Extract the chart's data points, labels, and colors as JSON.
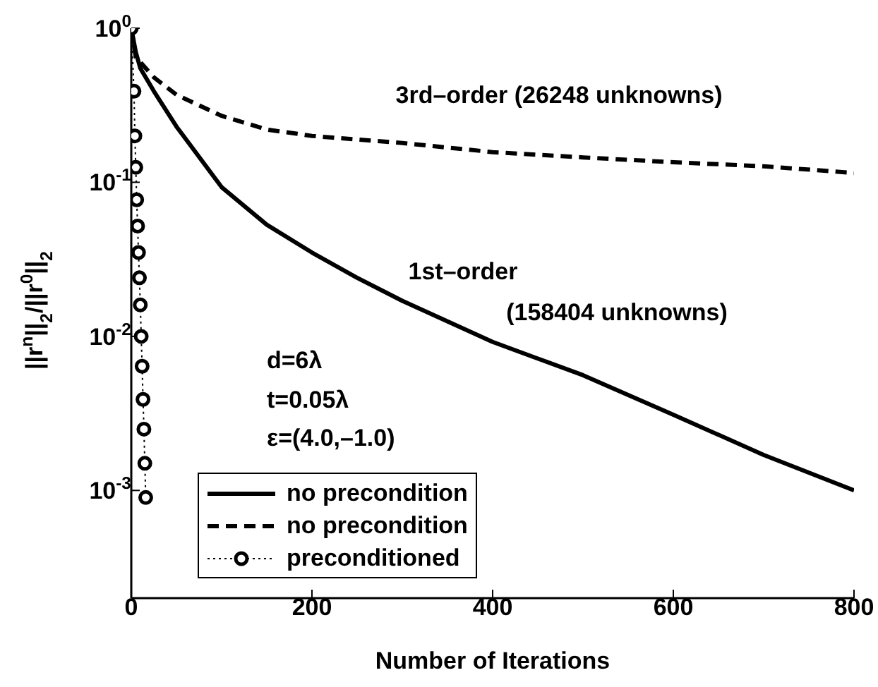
{
  "chart_data": {
    "type": "line",
    "xlabel": "Number of Iterations",
    "ylabel": "||r$^{n}$||$_{2}$/||r$^{0}$||$_{2}$",
    "log": "y",
    "xlim": [
      0,
      800
    ],
    "xticks": [
      0,
      200,
      400,
      600,
      800
    ],
    "ylim": [
      0.0002,
      1
    ],
    "yticks": [
      {
        "value": 1,
        "label": "10$^{0}$"
      },
      {
        "value": 0.1,
        "label": "10$^{-1}$"
      },
      {
        "value": 0.01,
        "label": "10$^{-2}$"
      },
      {
        "value": 0.001,
        "label": "10$^{-3}$"
      }
    ],
    "grid": false,
    "legend": "bottom left",
    "series": [
      {
        "name": "no precondition",
        "color": "#000000",
        "line_style": "solid",
        "marker": "none",
        "x": [
          0,
          5,
          10,
          25,
          50,
          100,
          150,
          200,
          250,
          300,
          400,
          500,
          600,
          700,
          800
        ],
        "values": [
          1,
          0.7,
          0.55,
          0.39,
          0.23,
          0.093,
          0.053,
          0.035,
          0.024,
          0.017,
          0.0092,
          0.0056,
          0.0031,
          0.0017,
          0.001
        ]
      },
      {
        "name": "no precondition",
        "color": "#000000",
        "line_style": "dashed",
        "marker": "none",
        "x": [
          0,
          5,
          25,
          50,
          100,
          150,
          200,
          300,
          400,
          500,
          600,
          700,
          800
        ],
        "values": [
          1,
          0.65,
          0.48,
          0.37,
          0.27,
          0.22,
          0.2,
          0.18,
          0.157,
          0.145,
          0.135,
          0.127,
          0.115
        ]
      },
      {
        "name": "preconditioned",
        "color": "#000000",
        "line_style": "dotted",
        "marker": "circle",
        "x": [
          0,
          3,
          4,
          5,
          6,
          7,
          8,
          9,
          10,
          11,
          12,
          13,
          14,
          15,
          16
        ],
        "values": [
          1,
          0.39,
          0.2,
          0.125,
          0.077,
          0.052,
          0.035,
          0.024,
          0.016,
          0.01,
          0.0064,
          0.0039,
          0.0025,
          0.0015,
          0.0009
        ]
      }
    ],
    "annotations": [
      "3rd–order (26248 unknowns)",
      "1st–order",
      "(158404 unknowns)",
      "d=6λ",
      "t=0.05λ",
      "ε=(4.0,–1.0)"
    ]
  }
}
